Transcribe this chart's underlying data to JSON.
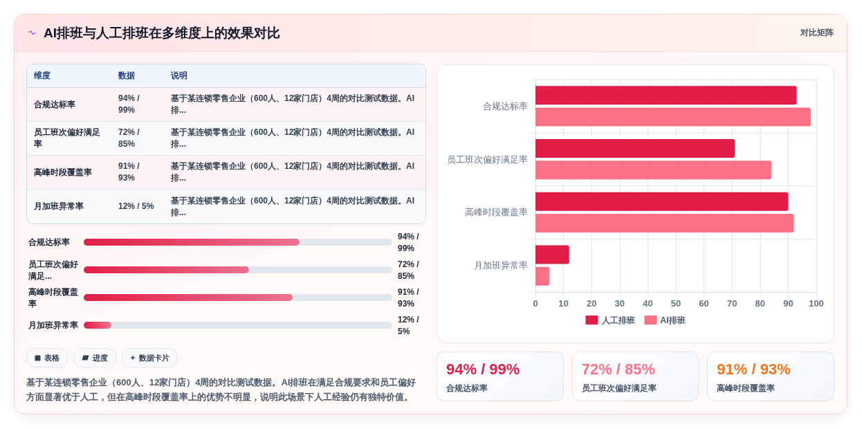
{
  "chart_data": [
    {
      "type": "other",
      "title": "AI排班与人工排班在多维度上的效果对比",
      "annotations": [
        "对比矩阵"
      ]
    },
    {
      "type": "other",
      "annotations": [
        "维度",
        "数据",
        "说明",
        "合规达标率",
        "94% / 99%",
        "基于某连锁零售企业（600人、12家门店）4周的对比测试数据。AI排...",
        "员工班次偏好满足率",
        "72% / 85%",
        "基于某连锁零售企业（600人、12家门店）4周的对比测试数据。AI排...",
        "高峰时段覆盖率",
        "91% / 93%",
        "基于某连锁零售企业（600人、12家门店）4周的对比测试数据。AI排...",
        "月加班异常率",
        "12% / 5%",
        "基于某连锁零售企业（600人、12家门店）4周的对比测试数据。AI排..."
      ]
    },
    {
      "type": "bar",
      "orientation": "horizontal",
      "categories": [
        "合规达标率",
        "员工班次偏好满足...",
        "高峰时段覆盖率",
        "月加班异常率"
      ],
      "values": [
        94,
        72,
        91,
        12
      ],
      "color": "#e11d48",
      "value_labels": [
        "94% / 99%",
        "72% / 85%",
        "91% / 93%",
        "12% / 5%"
      ]
    },
    {
      "type": "other",
      "annotations": [
        "表格",
        "进度",
        "数据卡片",
        "基于某连锁零售企业（600人、12家门店）4周的对比测试数据。AI排班在满足合规要求和员工偏好方面显著优于人工，但在高峰时段覆盖率上的优势不明显，说明此场景下人工经验仍有独特价值。"
      ]
    },
    {
      "type": "bar",
      "orientation": "horizontal",
      "categories": [
        "合规达标率",
        "员工班次偏好满足率",
        "高峰时段覆盖率",
        "月加班异常率"
      ],
      "series": [
        {
          "name": "人工排班",
          "color": "#e11d48",
          "values": [
            93,
            71,
            90,
            12
          ]
        },
        {
          "name": "AI排班",
          "color": "#fb7185",
          "values": [
            98,
            84,
            92,
            5
          ]
        }
      ],
      "xlim": [
        0,
        100
      ],
      "xticks": [
        0,
        10,
        20,
        30,
        40,
        50,
        60,
        70,
        80,
        90,
        100
      ],
      "grid": true,
      "legend": "bottom"
    },
    {
      "type": "other",
      "annotations": [
        "94% / 99%",
        "合规达标率",
        "72% / 85%",
        "员工班次偏好满足率",
        "91% / 93%",
        "高峰时段覆盖率"
      ],
      "colors": [
        "#e11d48",
        "#fb7185",
        "#f97316"
      ]
    }
  ]
}
